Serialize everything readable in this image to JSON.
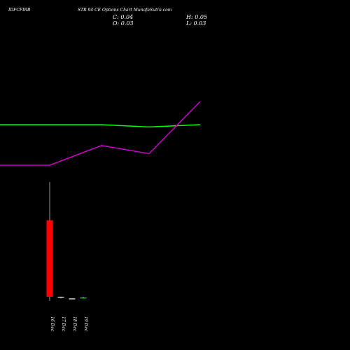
{
  "header": {
    "symbol": "IDFCFIRB",
    "subtitle": "STR 94 CE Options Chart MunafaSutra.com",
    "close_label": "C: 0.04",
    "open_label": "O: 0.03",
    "high_label": "H: 0.05",
    "low_label": "L: 0.03"
  },
  "colors": {
    "background": "#000000",
    "up": "#00ff00",
    "down": "#ff0000",
    "wick": "#ffffff",
    "green_line": "#00ff00",
    "magenta_line": "#cc00cc"
  },
  "chart_data": {
    "type": "candlestick",
    "categories": [
      "16 Dec",
      "17 Dec",
      "18 Dec",
      "19 Dec"
    ],
    "candles": [
      {
        "date": "16 Dec",
        "open": 0.95,
        "high": 1.4,
        "low": 0.0,
        "close": 0.05
      },
      {
        "date": "17 Dec",
        "open": 0.05,
        "high": 0.05,
        "low": 0.03,
        "close": 0.05
      },
      {
        "date": "18 Dec",
        "open": 0.03,
        "high": 0.03,
        "low": 0.03,
        "close": 0.03
      },
      {
        "date": "19 Dec",
        "open": 0.03,
        "high": 0.05,
        "low": 0.03,
        "close": 0.04
      }
    ],
    "overlays": [
      {
        "color": "green",
        "values": [
          0.8,
          0.8,
          0.8,
          0.78,
          0.8
        ]
      },
      {
        "color": "magenta",
        "values": [
          0.45,
          0.45,
          0.62,
          0.55,
          1.0
        ]
      }
    ]
  }
}
